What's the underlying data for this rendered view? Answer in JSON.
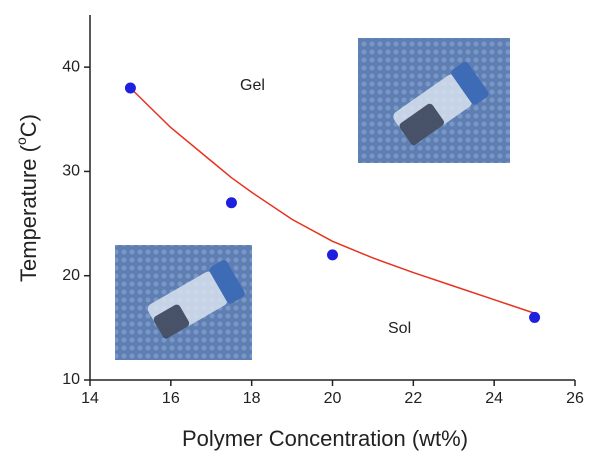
{
  "chart_data": {
    "type": "scatter",
    "x_label": "Polymer Concentration (wt%)",
    "y_label": {
      "before": "Temperature (",
      "sup": "o",
      "after": "C)"
    },
    "x": [
      15,
      17.5,
      20,
      25
    ],
    "values": [
      38,
      27,
      22,
      16
    ],
    "color": "#1f1fe0",
    "fit": {
      "x": [
        15,
        16,
        17,
        17.5,
        18,
        19,
        20,
        21,
        22,
        23,
        24,
        25
      ],
      "y": [
        38,
        34.2,
        31,
        29.4,
        28,
        25.4,
        23.3,
        21.7,
        20.3,
        19,
        17.7,
        16.4
      ],
      "color": "#e8321e"
    },
    "annotations": [
      "Gel",
      "Sol"
    ],
    "xlim": [
      14,
      26
    ],
    "xticks": [
      14,
      16,
      18,
      20,
      22,
      24,
      26
    ],
    "ylim": [
      10,
      45
    ],
    "yticks": [
      10,
      20,
      30,
      40
    ]
  }
}
